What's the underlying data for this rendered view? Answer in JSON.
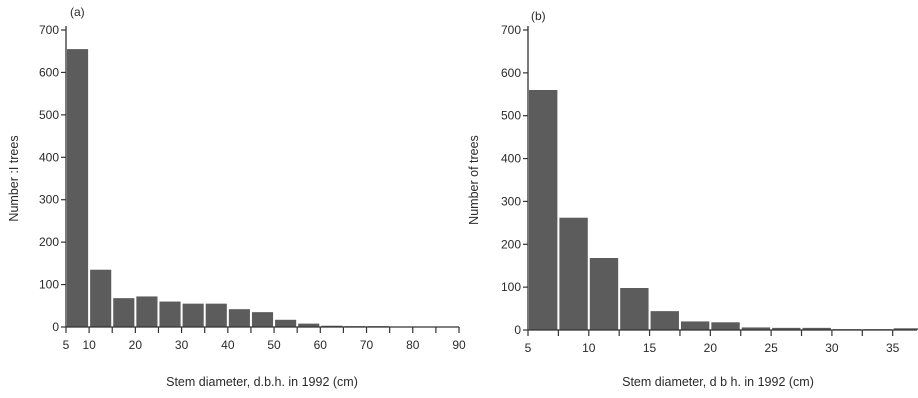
{
  "chart_data": [
    {
      "type": "bar",
      "panel_label": "(a)",
      "xlabel": "Stem diameter, d.b.h. in 1992 (cm)",
      "ylabel": "Number :I trees",
      "xlim": [
        5,
        90
      ],
      "ylim": [
        0,
        700
      ],
      "xticks": [
        5,
        10,
        20,
        30,
        40,
        50,
        60,
        70,
        80,
        90
      ],
      "yticks": [
        0,
        100,
        200,
        300,
        400,
        500,
        600,
        700
      ],
      "bin_width": 5,
      "bins": [
        {
          "start": 5,
          "value": 655
        },
        {
          "start": 10,
          "value": 135
        },
        {
          "start": 15,
          "value": 68
        },
        {
          "start": 20,
          "value": 72
        },
        {
          "start": 25,
          "value": 60
        },
        {
          "start": 30,
          "value": 55
        },
        {
          "start": 35,
          "value": 55
        },
        {
          "start": 40,
          "value": 42
        },
        {
          "start": 45,
          "value": 35
        },
        {
          "start": 50,
          "value": 17
        },
        {
          "start": 55,
          "value": 8
        },
        {
          "start": 60,
          "value": 3
        },
        {
          "start": 65,
          "value": 2
        },
        {
          "start": 70,
          "value": 2
        },
        {
          "start": 75,
          "value": 1
        },
        {
          "start": 80,
          "value": 1
        },
        {
          "start": 85,
          "value": 1
        }
      ]
    },
    {
      "type": "bar",
      "panel_label": "(b)",
      "xlabel": "Stem diameter, d b h. in 1992 (cm)",
      "ylabel": "Number of trees",
      "xlim": [
        5,
        37
      ],
      "ylim": [
        0,
        700
      ],
      "xticks": [
        5,
        10,
        15,
        20,
        25,
        30,
        35
      ],
      "yticks": [
        0,
        100,
        200,
        300,
        400,
        500,
        600,
        700
      ],
      "bin_width": 2.5,
      "bins": [
        {
          "start": 5,
          "value": 560
        },
        {
          "start": 7.5,
          "value": 262
        },
        {
          "start": 10,
          "value": 168
        },
        {
          "start": 12.5,
          "value": 98
        },
        {
          "start": 15,
          "value": 44
        },
        {
          "start": 17.5,
          "value": 20
        },
        {
          "start": 20,
          "value": 18
        },
        {
          "start": 22.5,
          "value": 6
        },
        {
          "start": 25,
          "value": 5
        },
        {
          "start": 27.5,
          "value": 5
        },
        {
          "start": 30,
          "value": 2
        },
        {
          "start": 32.5,
          "value": 2
        },
        {
          "start": 35,
          "value": 4
        }
      ]
    }
  ]
}
